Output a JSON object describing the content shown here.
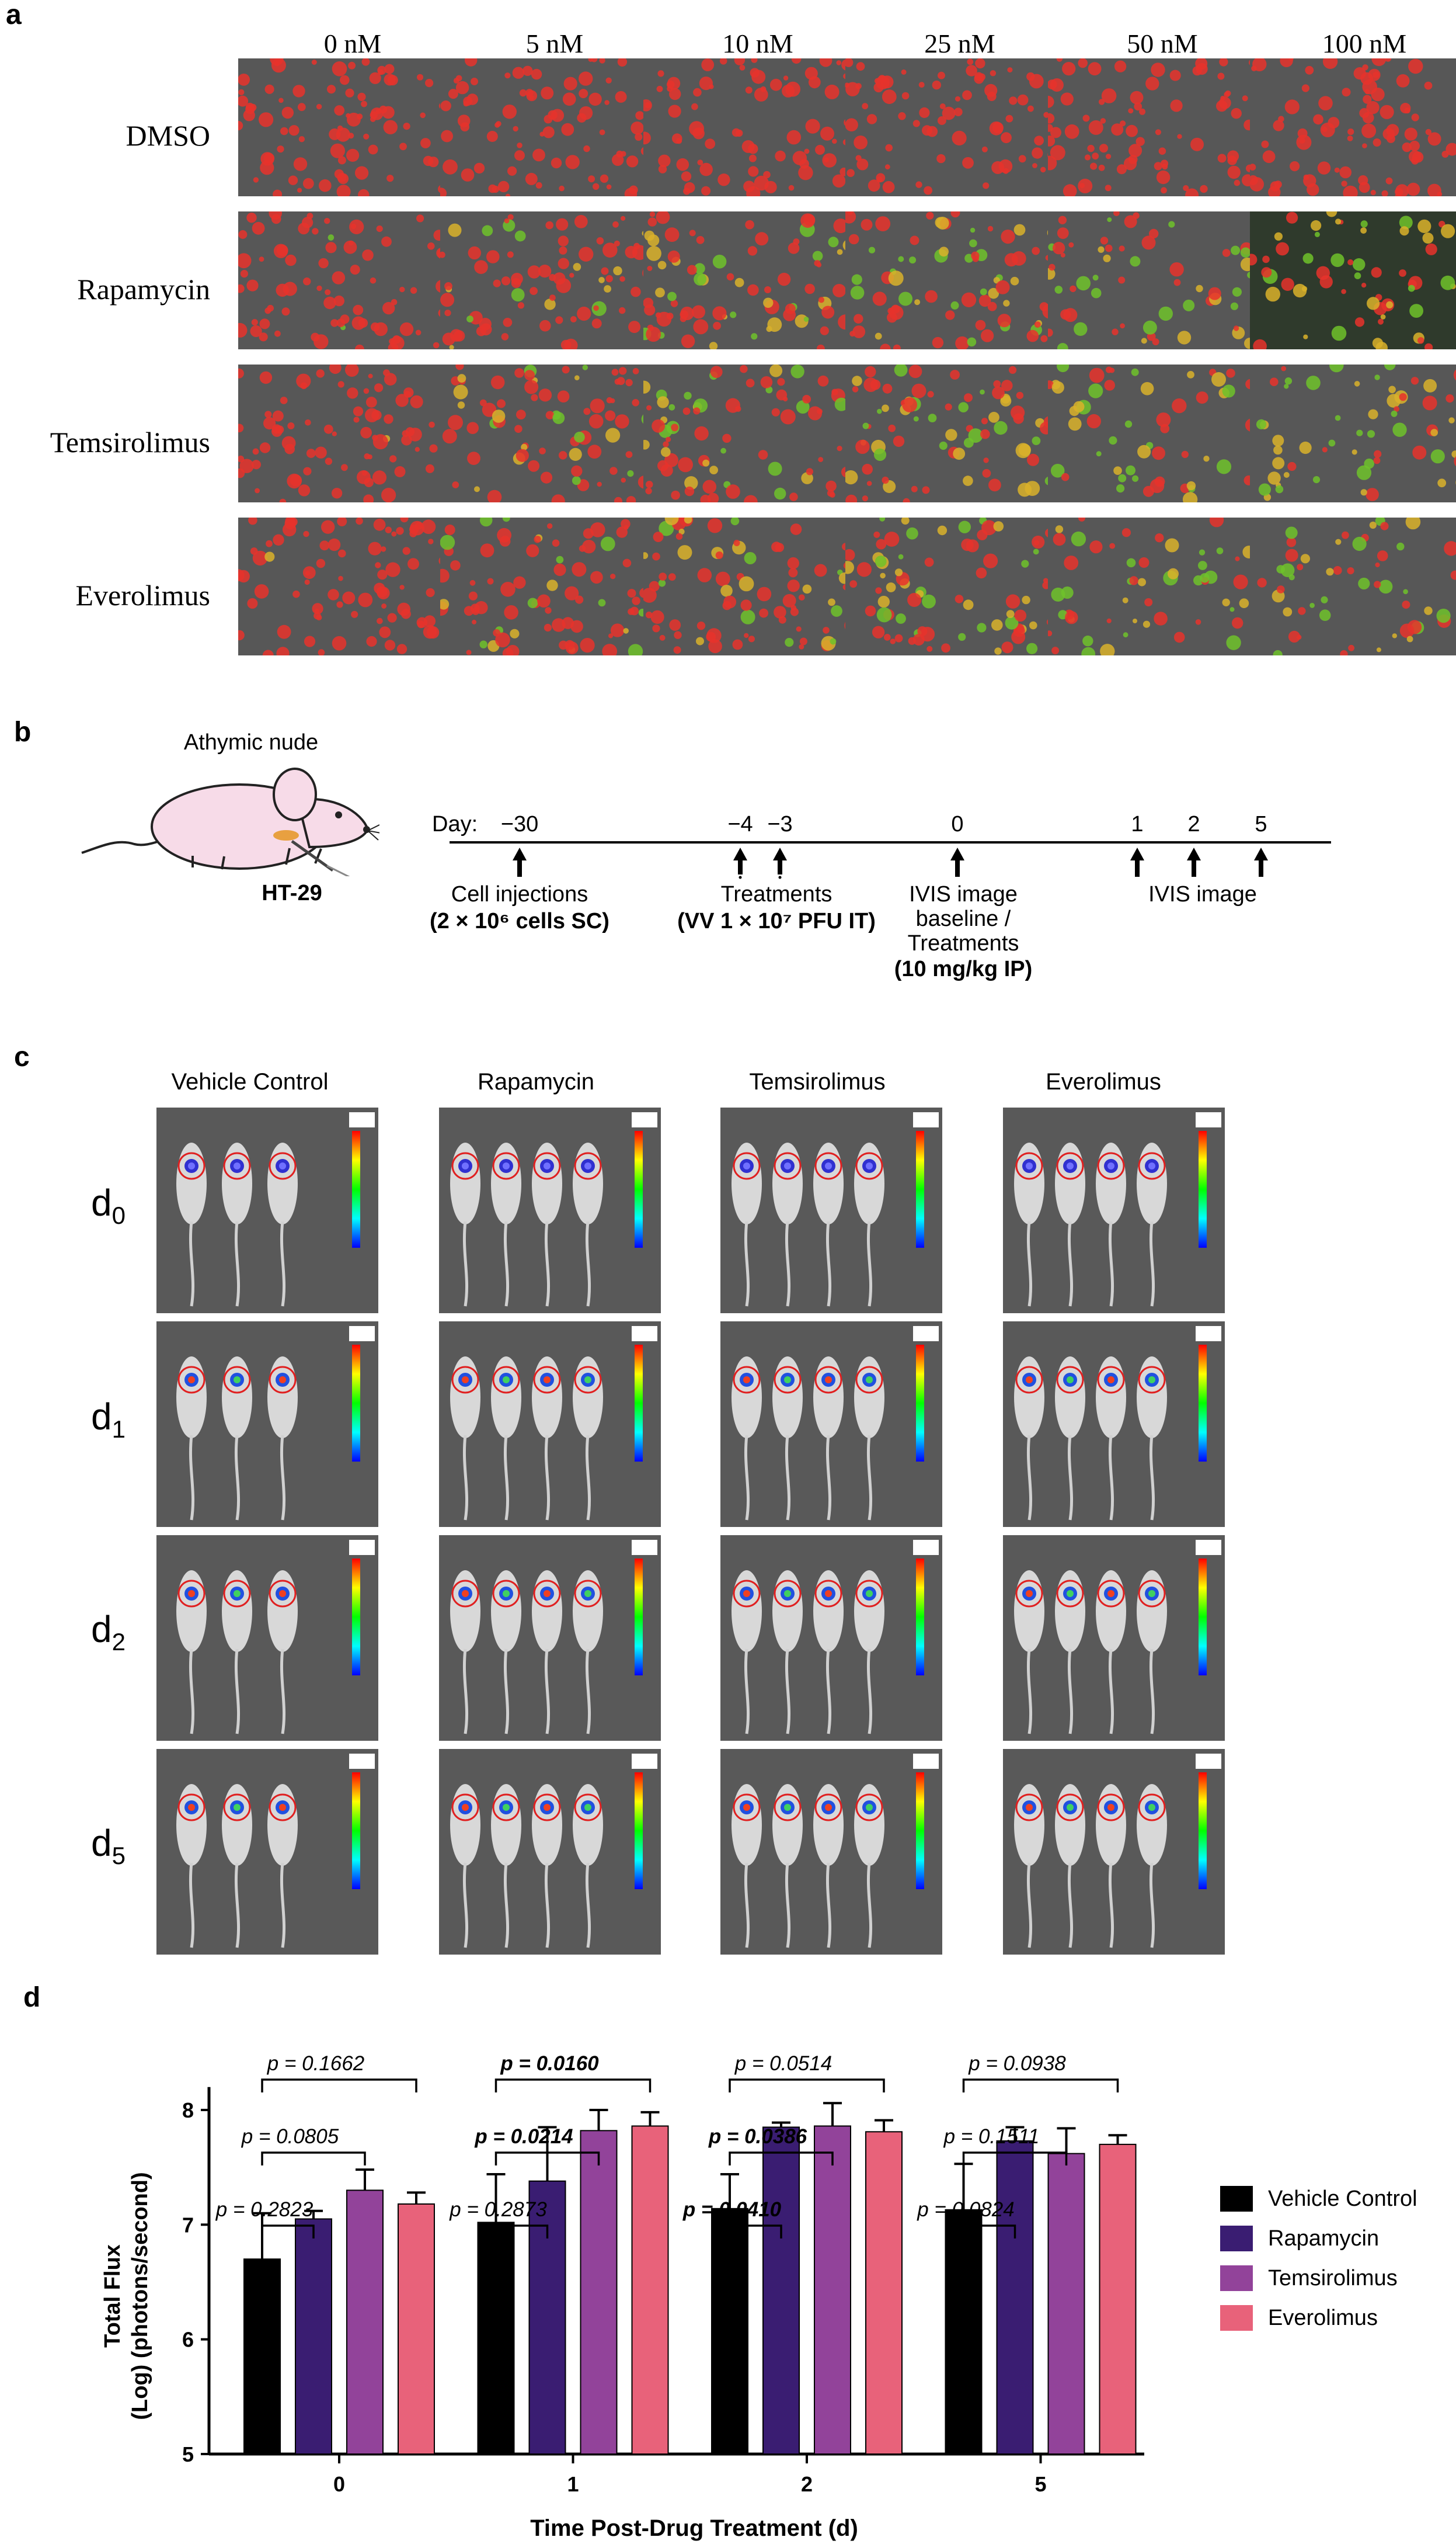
{
  "panels": {
    "a": {
      "letter": "a",
      "concentrations": [
        "0 nM",
        "5 nM",
        "10 nM",
        "25 nM",
        "50 nM",
        "100 nM"
      ],
      "rows": [
        "DMSO",
        "Rapamycin",
        "Temsirolimus",
        "Everolimus"
      ]
    },
    "b": {
      "letter": "b",
      "mouse_label": "Athymic nude",
      "cell_line": "HT-29",
      "day_prefix": "Day:",
      "ticks": [
        "−30",
        "−4",
        "−3",
        "0",
        "1",
        "2",
        "5"
      ],
      "events": {
        "cell_injections": "Cell injections",
        "cell_injections_detail": "(2 × 10⁶ cells SC)",
        "treatments": "Treatments",
        "treatments_detail": "(VV 1 × 10⁷ PFU IT)",
        "ivis_baseline_1": "IVIS image",
        "ivis_baseline_2": "baseline /",
        "ivis_baseline_3": "Treatments",
        "ivis_baseline_detail": "(10 mg/kg IP)",
        "ivis_image": "IVIS image"
      }
    },
    "c": {
      "letter": "c",
      "columns": [
        "Vehicle Control",
        "Rapamycin",
        "Temsirolimus",
        "Everolimus"
      ],
      "days": [
        {
          "base": "d",
          "sub": "0"
        },
        {
          "base": "d",
          "sub": "1"
        },
        {
          "base": "d",
          "sub": "2"
        },
        {
          "base": "d",
          "sub": "5"
        }
      ]
    },
    "d": {
      "letter": "d"
    }
  },
  "chart_data": {
    "type": "bar",
    "categories": [
      "0",
      "1",
      "2",
      "5"
    ],
    "xlabel": "Time Post-Drug Treatment (d)",
    "ylabel_line1": "Total Flux",
    "ylabel_line2": "(Log) (photons/second)",
    "ylim": [
      5,
      8.2
    ],
    "yticks": [
      "5",
      "6",
      "7",
      "8"
    ],
    "series": [
      {
        "name": "Vehicle Control",
        "color": "#000000",
        "values": [
          6.7,
          7.02,
          7.14,
          7.13
        ],
        "errors": [
          0.4,
          0.42,
          0.3,
          0.4
        ]
      },
      {
        "name": "Rapamycin",
        "color": "#3a1d72",
        "values": [
          7.05,
          7.38,
          7.85,
          7.73
        ],
        "errors": [
          0.07,
          0.47,
          0.04,
          0.12
        ]
      },
      {
        "name": "Temsirolimus",
        "color": "#92439a",
        "values": [
          7.3,
          7.82,
          7.86,
          7.62
        ],
        "errors": [
          0.18,
          0.18,
          0.2,
          0.22
        ]
      },
      {
        "name": "Everolimus",
        "color": "#e8627a",
        "values": [
          7.18,
          7.86,
          7.81,
          7.7
        ],
        "errors": [
          0.1,
          0.12,
          0.1,
          0.08
        ]
      }
    ],
    "annotations": [
      {
        "group": 0,
        "compare": 1,
        "text": "p = 0.2823",
        "bold": false
      },
      {
        "group": 0,
        "compare": 2,
        "text": "p = 0.0805",
        "bold": false
      },
      {
        "group": 0,
        "compare": 3,
        "text": "p = 0.1662",
        "bold": false
      },
      {
        "group": 1,
        "compare": 1,
        "text": "p = 0.2873",
        "bold": false
      },
      {
        "group": 1,
        "compare": 2,
        "text": "p = 0.0214",
        "bold": true
      },
      {
        "group": 1,
        "compare": 3,
        "text": "p = 0.0160",
        "bold": true
      },
      {
        "group": 2,
        "compare": 1,
        "text": "p = 0.0410",
        "bold": true
      },
      {
        "group": 2,
        "compare": 2,
        "text": "p = 0.0386",
        "bold": true
      },
      {
        "group": 2,
        "compare": 3,
        "text": "p = 0.0514",
        "bold": false
      },
      {
        "group": 3,
        "compare": 1,
        "text": "p = 0.0824",
        "bold": false
      },
      {
        "group": 3,
        "compare": 2,
        "text": "p = 0.1511",
        "bold": false
      },
      {
        "group": 3,
        "compare": 3,
        "text": "p = 0.0938",
        "bold": false
      }
    ]
  }
}
